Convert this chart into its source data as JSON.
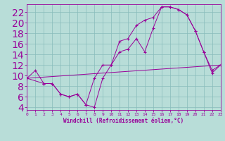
{
  "xlabel": "Windchill (Refroidissement éolien,°C)",
  "bg_color": "#b8ddd8",
  "line_color": "#990099",
  "grid_color": "#88bbbb",
  "xlim": [
    0,
    23
  ],
  "ylim": [
    3.5,
    23.5
  ],
  "xticks": [
    0,
    1,
    2,
    3,
    4,
    5,
    6,
    7,
    8,
    9,
    10,
    11,
    12,
    13,
    14,
    15,
    16,
    17,
    18,
    19,
    20,
    21,
    22,
    23
  ],
  "yticks": [
    4,
    6,
    8,
    10,
    12,
    14,
    16,
    18,
    20,
    22
  ],
  "series1_x": [
    0,
    1,
    2,
    3,
    4,
    5,
    6,
    7,
    8,
    9,
    10,
    11,
    12,
    13,
    14,
    15,
    16,
    17,
    18,
    19,
    20,
    21,
    22,
    23
  ],
  "series1_y": [
    9.5,
    11.0,
    8.5,
    8.5,
    6.5,
    6.0,
    6.5,
    4.5,
    4.0,
    9.5,
    12.0,
    16.5,
    17.0,
    19.5,
    20.5,
    21.0,
    23.0,
    23.0,
    22.5,
    21.5,
    18.5,
    14.5,
    11.0,
    12.0
  ],
  "series2_x": [
    0,
    2,
    3,
    4,
    5,
    6,
    7,
    8,
    9,
    10,
    11,
    12,
    13,
    14,
    15,
    16,
    17,
    18,
    19,
    20,
    21,
    22,
    23
  ],
  "series2_y": [
    9.5,
    8.5,
    8.5,
    6.5,
    6.0,
    6.5,
    4.5,
    9.5,
    12.0,
    12.0,
    14.5,
    15.0,
    17.0,
    14.5,
    19.0,
    23.0,
    23.0,
    22.5,
    21.5,
    18.5,
    14.5,
    10.5,
    12.0
  ],
  "series3_x": [
    0,
    23
  ],
  "series3_y": [
    9.5,
    12.0
  ]
}
